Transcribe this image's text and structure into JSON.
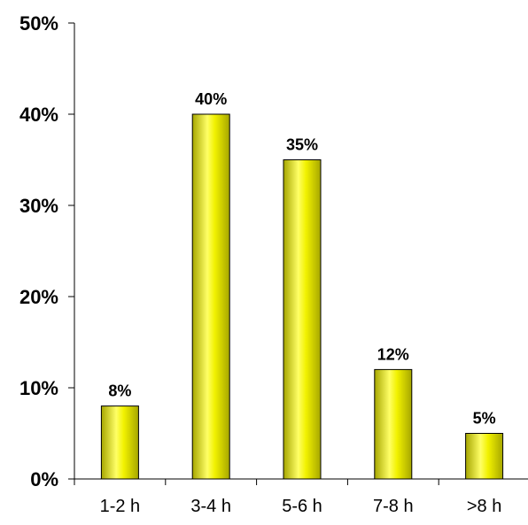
{
  "chart_data": {
    "type": "bar",
    "categories": [
      "1-2 h",
      "3-4 h",
      "5-6 h",
      "7-8 h",
      ">8 h"
    ],
    "values": [
      8,
      40,
      35,
      12,
      5
    ],
    "data_labels": [
      "8%",
      "40%",
      "35%",
      "12%",
      "5%"
    ],
    "title": "",
    "xlabel": "",
    "ylabel": "",
    "ylim": [
      0,
      50
    ],
    "y_ticks": [
      0,
      10,
      20,
      30,
      40,
      50
    ],
    "y_tick_labels": [
      "0%",
      "10%",
      "20%",
      "30%",
      "40%",
      "50%"
    ],
    "grid": false,
    "legend": "none",
    "colors": {
      "bar_light": "#ffff66",
      "bar_mid": "#f2f200",
      "bar_dark": "#a6a600",
      "axis": "#000000"
    }
  }
}
